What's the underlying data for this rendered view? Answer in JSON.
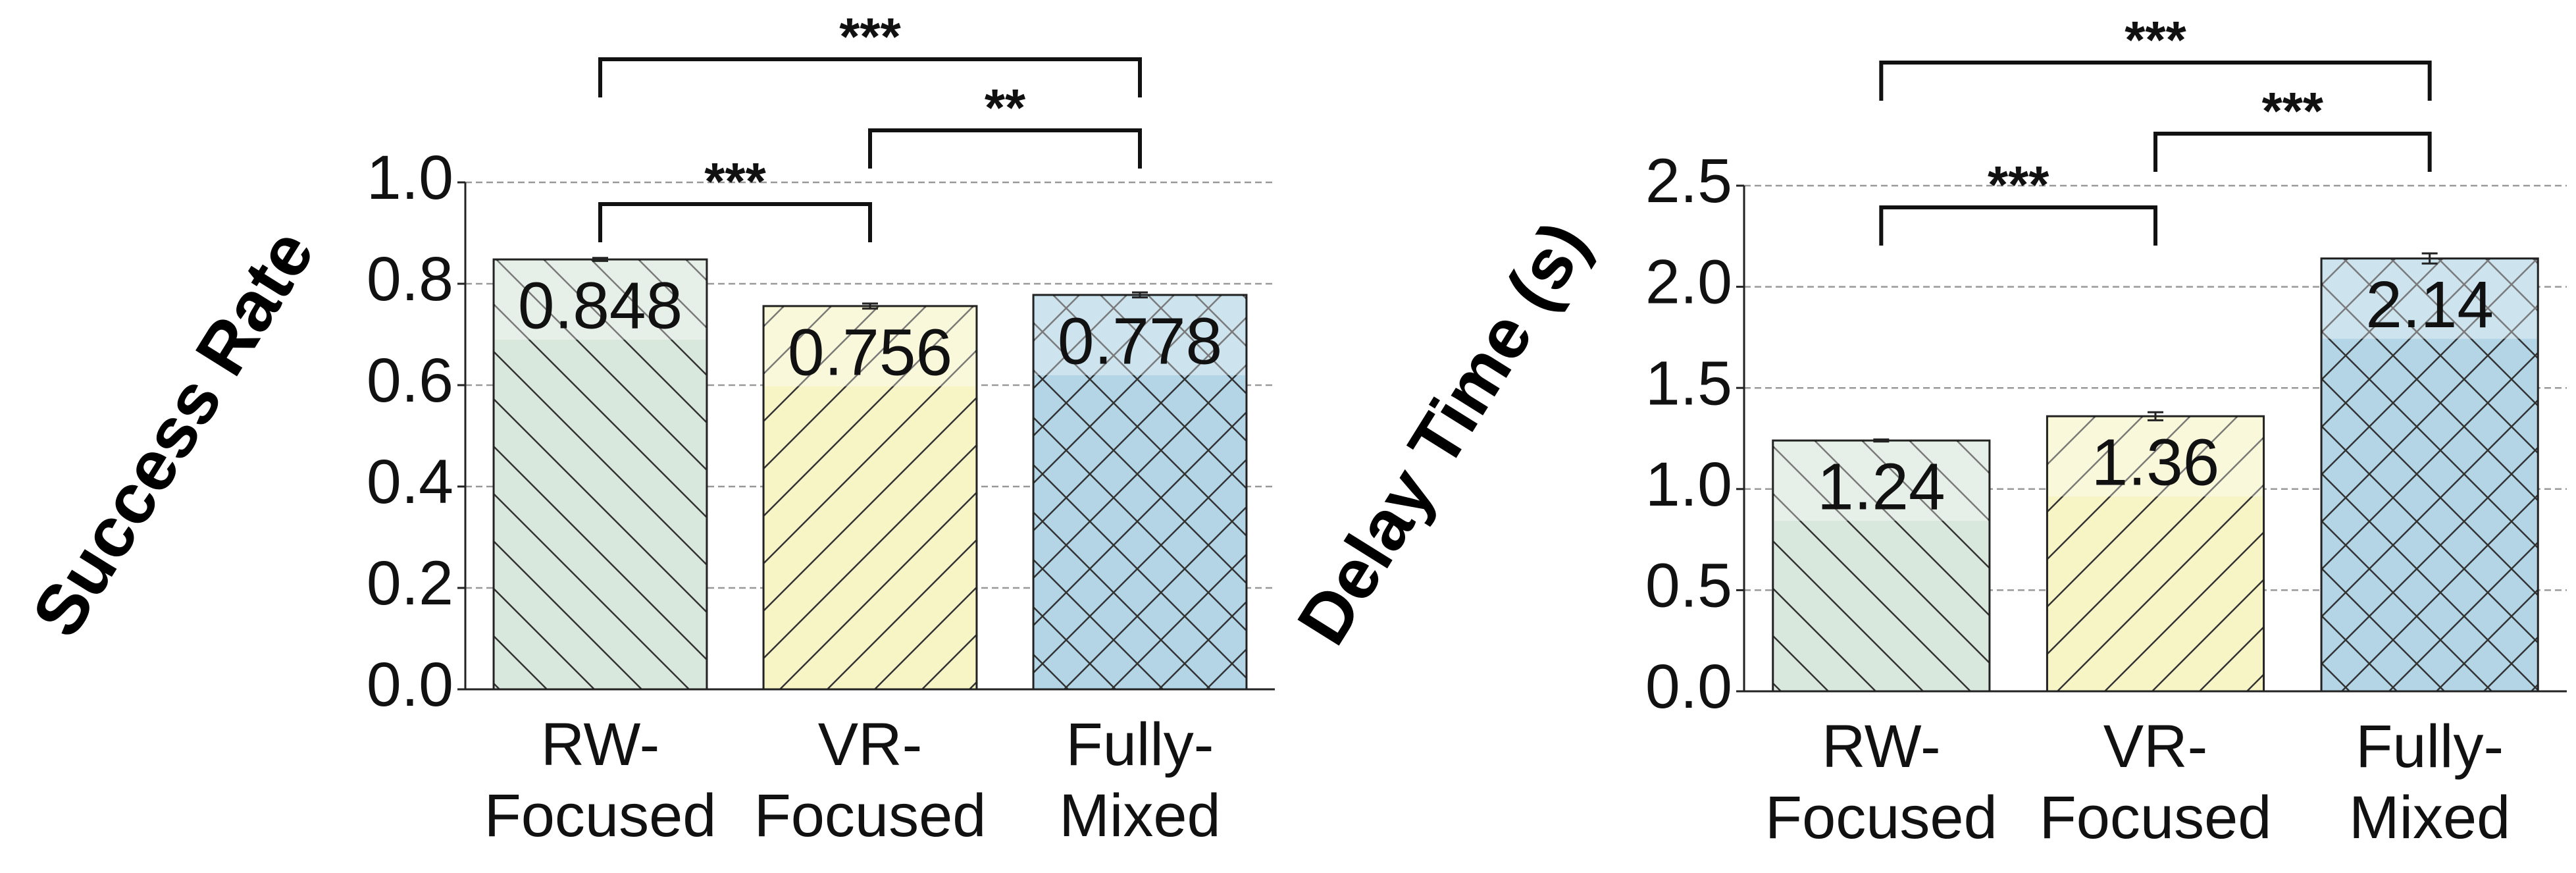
{
  "chart_data": [
    {
      "type": "bar",
      "y_label": "Success Rate",
      "categories": [
        "RW-\nFocused",
        "VR-\nFocused",
        "Fully-\nMixed"
      ],
      "values": [
        0.848,
        0.756,
        0.778
      ],
      "errors": [
        0.003,
        0.005,
        0.005
      ],
      "colors": [
        "#d9e8dc",
        "#f7f4c6",
        "#b3d5e5"
      ],
      "hatches": [
        "\\",
        "/",
        "x"
      ],
      "ylim": [
        0,
        1.0
      ],
      "yticks": [
        {
          "value": 0,
          "label": "0.0"
        },
        0.2,
        0.4,
        0.6,
        0.8,
        {
          "value": 1,
          "label": "1.0"
        }
      ],
      "grid": true,
      "comparisons": [
        {
          "pair": [
            0,
            1
          ],
          "label": "***"
        },
        {
          "pair": [
            1,
            2
          ],
          "label": "**"
        },
        {
          "pair": [
            0,
            2
          ],
          "label": "***"
        }
      ]
    },
    {
      "type": "bar",
      "y_label": "Delay Time (s)",
      "categories": [
        "RW-\nFocused",
        "VR-\nFocused",
        "Fully-\nMixed"
      ],
      "values": [
        1.24,
        1.36,
        2.14
      ],
      "errors": [
        0.005,
        0.02,
        0.025
      ],
      "colors": [
        "#d9e8dc",
        "#f7f4c6",
        "#b3d5e5"
      ],
      "hatches": [
        "\\",
        "/",
        "x"
      ],
      "ylim": [
        0,
        2.5
      ],
      "yticks": [
        {
          "value": 0,
          "label": "0.0"
        },
        0.5,
        {
          "value": 1,
          "label": "1.0"
        },
        1.5,
        {
          "value": 2,
          "label": "2.0"
        },
        2.5
      ],
      "grid": true,
      "comparisons": [
        {
          "pair": [
            0,
            1
          ],
          "label": "***"
        },
        {
          "pair": [
            1,
            2
          ],
          "label": "***"
        },
        {
          "pair": [
            0,
            2
          ],
          "label": "***"
        }
      ]
    }
  ]
}
